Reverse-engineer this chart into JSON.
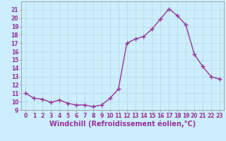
{
  "x": [
    0,
    1,
    2,
    3,
    4,
    5,
    6,
    7,
    8,
    9,
    10,
    11,
    12,
    13,
    14,
    15,
    16,
    17,
    18,
    19,
    20,
    21,
    22,
    23
  ],
  "y": [
    11.0,
    10.4,
    10.3,
    9.9,
    10.2,
    9.8,
    9.6,
    9.6,
    9.4,
    9.6,
    10.4,
    11.5,
    17.0,
    17.5,
    17.8,
    18.7,
    19.9,
    21.1,
    20.3,
    19.2,
    15.7,
    14.2,
    13.0,
    12.7
  ],
  "line_color": "#993399",
  "marker": "+",
  "markersize": 4,
  "linewidth": 1.0,
  "xlabel": "Windchill (Refroidissement éolien,°C)",
  "xlabel_fontsize": 7,
  "bg_color": "#cceeff",
  "grid_color": "#bbdddd",
  "ylim": [
    9,
    22
  ],
  "xlim": [
    -0.5,
    23.5
  ],
  "yticks": [
    9,
    10,
    11,
    12,
    13,
    14,
    15,
    16,
    17,
    18,
    19,
    20,
    21
  ],
  "xticks": [
    0,
    1,
    2,
    3,
    4,
    5,
    6,
    7,
    8,
    9,
    10,
    11,
    12,
    13,
    14,
    15,
    16,
    17,
    18,
    19,
    20,
    21,
    22,
    23
  ],
  "tick_fontsize": 5.5,
  "axis_color": "#993399",
  "spine_color": "#999999"
}
